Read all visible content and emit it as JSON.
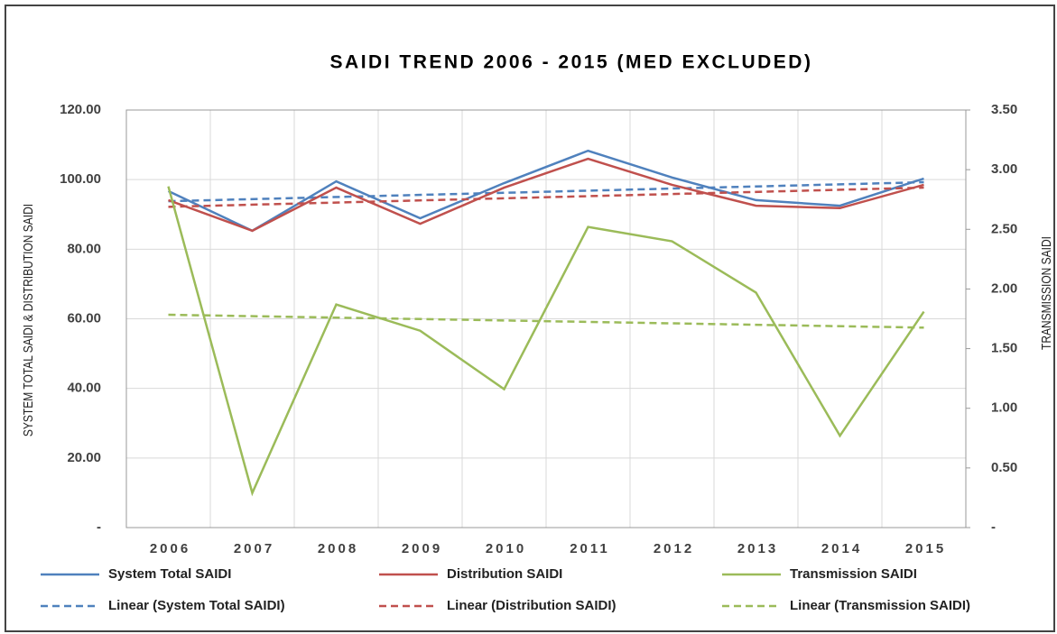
{
  "chart_data": {
    "type": "line",
    "title": "SAIDI TREND 2006 - 2015 (MED EXCLUDED)",
    "ylabel": "SYSTEM TOTAL SAIDI & DISTRIBUTION SAIDI",
    "y2label": "TRANSMISSION SAIDI",
    "categories": [
      "2006",
      "2007",
      "2008",
      "2009",
      "2010",
      "2011",
      "2012",
      "2013",
      "2014",
      "2015"
    ],
    "series": [
      {
        "name": "System Total SAIDI",
        "color": "#4f81bd",
        "values": [
          96.7,
          85.3,
          99.5,
          88.9,
          99.0,
          108.3,
          100.6,
          94.1,
          92.5,
          100.3
        ],
        "trendline": {
          "name": "Linear (System Total SAIDI)",
          "type": "linear"
        }
      },
      {
        "name": "Distribution SAIDI",
        "color": "#c0504d",
        "values": [
          94.1,
          85.3,
          97.7,
          87.3,
          97.7,
          106.0,
          98.5,
          92.5,
          91.8,
          98.5
        ],
        "trendline": {
          "name": "Linear (Distribution SAIDI)",
          "type": "linear"
        }
      },
      {
        "name": "Transmission SAIDI",
        "color": "#9bbb59",
        "axis": "y2",
        "values": [
          2.86,
          0.29,
          1.87,
          1.65,
          1.16,
          2.52,
          2.4,
          1.97,
          0.77,
          1.81
        ],
        "trendline": {
          "name": "Linear (Transmission SAIDI)",
          "type": "linear"
        }
      }
    ],
    "ylim": [
      0,
      120
    ],
    "yticks": [
      {
        "value": 0,
        "label": "-"
      },
      {
        "value": 20,
        "label": "20.00"
      },
      {
        "value": 40,
        "label": "40.00"
      },
      {
        "value": 60,
        "label": "60.00"
      },
      {
        "value": 80,
        "label": "80.00"
      },
      {
        "value": 100,
        "label": "100.00"
      },
      {
        "value": 120,
        "label": "120.00"
      }
    ],
    "y2lim": [
      0,
      3.5
    ],
    "y2ticks": [
      {
        "value": 0,
        "label": "-"
      },
      {
        "value": 0.5,
        "label": "0.50"
      },
      {
        "value": 1,
        "label": "1.00"
      },
      {
        "value": 1.5,
        "label": "1.50"
      },
      {
        "value": 2,
        "label": "2.00"
      },
      {
        "value": 2.5,
        "label": "2.50"
      },
      {
        "value": 3,
        "label": "3.00"
      },
      {
        "value": 3.5,
        "label": "3.50"
      }
    ],
    "grid": true,
    "legend": "bottom"
  }
}
